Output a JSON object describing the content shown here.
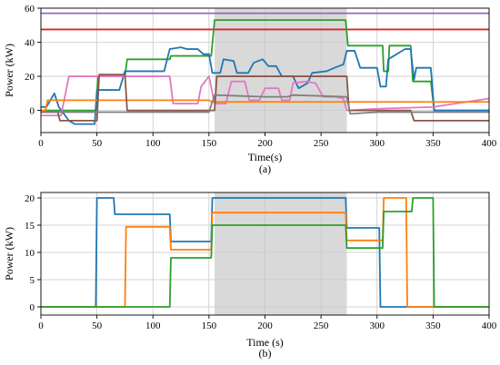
{
  "chart_data": [
    {
      "type": "line",
      "caption": "(a)",
      "xlabel": "Time(s)",
      "ylabel": "Power (kW)",
      "xlim": [
        0,
        400
      ],
      "ylim": [
        -13,
        60
      ],
      "xticks": [
        0,
        50,
        100,
        150,
        200,
        250,
        300,
        350,
        400
      ],
      "yticks": [
        0,
        20,
        40,
        60
      ],
      "grid": true,
      "shaded_interval": [
        155,
        273
      ],
      "series": [
        {
          "color": "#9467bd",
          "points": [
            [
              0,
              57
            ],
            [
              400,
              57
            ]
          ]
        },
        {
          "color": "#d62728",
          "points": [
            [
              0,
              47.5
            ],
            [
              400,
              47.5
            ]
          ]
        },
        {
          "color": "#2ca02c",
          "points": [
            [
              0,
              0
            ],
            [
              49,
              0
            ],
            [
              51,
              20
            ],
            [
              75,
              20
            ],
            [
              77,
              30
            ],
            [
              115,
              30
            ],
            [
              116,
              32
            ],
            [
              152,
              32
            ],
            [
              155,
              53
            ],
            [
              272,
              53
            ],
            [
              274,
              38
            ],
            [
              300,
              38
            ],
            [
              305,
              38
            ],
            [
              306,
              23
            ],
            [
              310,
              23
            ],
            [
              311,
              38
            ],
            [
              330,
              38
            ],
            [
              332,
              17
            ],
            [
              348,
              17
            ],
            [
              351,
              0
            ],
            [
              400,
              0
            ]
          ]
        },
        {
          "color": "#1f77b4",
          "points": [
            [
              0,
              2
            ],
            [
              5,
              2
            ],
            [
              12,
              10
            ],
            [
              16,
              2
            ],
            [
              25,
              -6
            ],
            [
              30,
              -8
            ],
            [
              45,
              -8
            ],
            [
              48,
              -8
            ],
            [
              50,
              12
            ],
            [
              70,
              12
            ],
            [
              75,
              23
            ],
            [
              110,
              23
            ],
            [
              115,
              36
            ],
            [
              125,
              37
            ],
            [
              130,
              36
            ],
            [
              140,
              36
            ],
            [
              145,
              33
            ],
            [
              150,
              33
            ],
            [
              153,
              22
            ],
            [
              160,
              22
            ],
            [
              163,
              30
            ],
            [
              172,
              29
            ],
            [
              175,
              22
            ],
            [
              185,
              22
            ],
            [
              190,
              28
            ],
            [
              198,
              30
            ],
            [
              203,
              26
            ],
            [
              210,
              26
            ],
            [
              215,
              20
            ],
            [
              225,
              20
            ],
            [
              230,
              13
            ],
            [
              238,
              16
            ],
            [
              242,
              22
            ],
            [
              255,
              23
            ],
            [
              262,
              25
            ],
            [
              270,
              27
            ],
            [
              273,
              35
            ],
            [
              280,
              35
            ],
            [
              285,
              25
            ],
            [
              300,
              25
            ],
            [
              303,
              14
            ],
            [
              308,
              14
            ],
            [
              310,
              30
            ],
            [
              325,
              36
            ],
            [
              330,
              36
            ],
            [
              333,
              18
            ],
            [
              335,
              25
            ],
            [
              348,
              25
            ],
            [
              351,
              0
            ],
            [
              400,
              0
            ]
          ]
        },
        {
          "color": "#e377c2",
          "points": [
            [
              0,
              -3
            ],
            [
              18,
              -3
            ],
            [
              25,
              20
            ],
            [
              75,
              20
            ],
            [
              78,
              20
            ],
            [
              115,
              20
            ],
            [
              118,
              4
            ],
            [
              140,
              4
            ],
            [
              143,
              14
            ],
            [
              150,
              20
            ],
            [
              155,
              4
            ],
            [
              165,
              4
            ],
            [
              170,
              17
            ],
            [
              182,
              17
            ],
            [
              186,
              6
            ],
            [
              195,
              6
            ],
            [
              200,
              13
            ],
            [
              212,
              13
            ],
            [
              215,
              6
            ],
            [
              222,
              6
            ],
            [
              225,
              16
            ],
            [
              238,
              17
            ],
            [
              245,
              16
            ],
            [
              252,
              8
            ],
            [
              262,
              8
            ],
            [
              270,
              7
            ],
            [
              273,
              0
            ],
            [
              300,
              1
            ],
            [
              350,
              2
            ],
            [
              400,
              7
            ]
          ]
        },
        {
          "color": "#ff7f0e",
          "points": [
            [
              0,
              0
            ],
            [
              4,
              0
            ],
            [
              6,
              6
            ],
            [
              130,
              6
            ],
            [
              150,
              6
            ],
            [
              152,
              5
            ],
            [
              400,
              5
            ]
          ]
        },
        {
          "color": "#8c564b",
          "points": [
            [
              0,
              -1
            ],
            [
              15,
              -1
            ],
            [
              17,
              -6
            ],
            [
              50,
              -6
            ],
            [
              52,
              21
            ],
            [
              75,
              21
            ],
            [
              77,
              0
            ],
            [
              130,
              0
            ],
            [
              132,
              0
            ],
            [
              155,
              0
            ],
            [
              157,
              20
            ],
            [
              273,
              20
            ],
            [
              275,
              0
            ],
            [
              330,
              0
            ],
            [
              333,
              -6
            ],
            [
              400,
              -6
            ]
          ]
        },
        {
          "color": "#7f7f7f",
          "points": [
            [
              0,
              -1
            ],
            [
              50,
              -1
            ],
            [
              100,
              -1
            ],
            [
              150,
              -1
            ],
            [
              155,
              9
            ],
            [
              200,
              8
            ],
            [
              220,
              8
            ],
            [
              225,
              9
            ],
            [
              273,
              8
            ],
            [
              276,
              -2
            ],
            [
              300,
              -1
            ],
            [
              350,
              -1
            ],
            [
              400,
              -1
            ]
          ]
        }
      ]
    },
    {
      "type": "line",
      "caption": "(b)",
      "xlabel": "Time (s)",
      "ylabel": "Power (kW)",
      "xlim": [
        0,
        400
      ],
      "ylim": [
        -1.5,
        21
      ],
      "xticks": [
        0,
        50,
        100,
        150,
        200,
        250,
        300,
        350,
        400
      ],
      "yticks": [
        0,
        5,
        10,
        15,
        20
      ],
      "grid": true,
      "shaded_interval": [
        155,
        273
      ],
      "series": [
        {
          "color": "#1f77b4",
          "points": [
            [
              0,
              0
            ],
            [
              49,
              0
            ],
            [
              50,
              20
            ],
            [
              65,
              20
            ],
            [
              66,
              17
            ],
            [
              115,
              17
            ],
            [
              116,
              12
            ],
            [
              152,
              12
            ],
            [
              153,
              20
            ],
            [
              272,
              20
            ],
            [
              273,
              14.5
            ],
            [
              302,
              14.5
            ],
            [
              303,
              0
            ],
            [
              400,
              0
            ]
          ]
        },
        {
          "color": "#ff7f0e",
          "points": [
            [
              0,
              0
            ],
            [
              75,
              0
            ],
            [
              76,
              14.7
            ],
            [
              115,
              14.7
            ],
            [
              116,
              10.5
            ],
            [
              152,
              10.5
            ],
            [
              153,
              17.3
            ],
            [
              272,
              17.3
            ],
            [
              273,
              12.2
            ],
            [
              305,
              12.2
            ],
            [
              306,
              20
            ],
            [
              326,
              20
            ],
            [
              327,
              0
            ],
            [
              400,
              0
            ]
          ]
        },
        {
          "color": "#2ca02c",
          "points": [
            [
              0,
              0
            ],
            [
              115,
              0
            ],
            [
              116,
              9
            ],
            [
              152,
              9
            ],
            [
              153,
              15
            ],
            [
              272,
              15
            ],
            [
              273,
              10.8
            ],
            [
              305,
              10.8
            ],
            [
              306,
              17.5
            ],
            [
              331,
              17.5
            ],
            [
              332,
              20
            ],
            [
              350,
              20
            ],
            [
              351,
              0
            ],
            [
              400,
              0
            ]
          ]
        }
      ]
    }
  ]
}
